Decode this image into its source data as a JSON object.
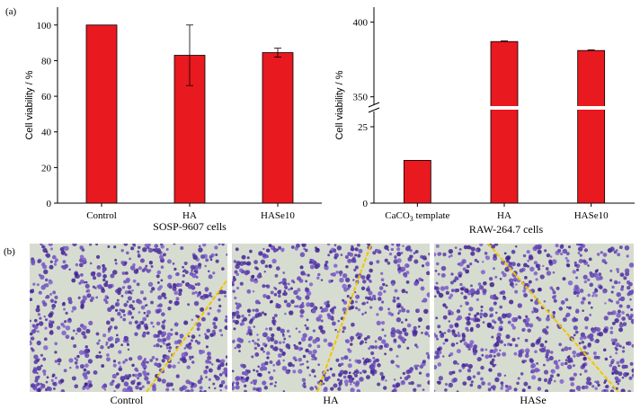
{
  "panel_labels": {
    "a": "(a)",
    "b": "(b)"
  },
  "colors": {
    "bar": "#e8191f",
    "axis": "#000000",
    "micro_bg": "#d7dcd0",
    "cell": "#5b3f9c",
    "scratch_line": "#f2c400"
  },
  "chart_data": [
    {
      "type": "bar",
      "title": "",
      "xlabel": "SOSP-9607 cells",
      "ylabel": "Cell viability / %",
      "categories": [
        "Control",
        "HA",
        "HASe10"
      ],
      "values": [
        100,
        83,
        84.5
      ],
      "errors": [
        0,
        17,
        2.5
      ],
      "ylim": [
        0,
        110
      ],
      "yticks": [
        0,
        20,
        40,
        60,
        80,
        100
      ],
      "grid": false
    },
    {
      "type": "bar",
      "title": "",
      "xlabel": "RAW-264.7 cells",
      "ylabel": "Cell viability / %",
      "categories": [
        "CaCO3 template",
        "HA",
        "HASe10"
      ],
      "category_subscripts": [
        "3",
        "",
        ""
      ],
      "category_display": [
        [
          "CaCO",
          "3",
          " template"
        ],
        [
          "HA",
          "",
          ""
        ],
        [
          "HASe10",
          "",
          ""
        ]
      ],
      "values": [
        14,
        387,
        381
      ],
      "errors": [
        0,
        0.5,
        0.5
      ],
      "axis_break": {
        "lower": [
          0,
          30
        ],
        "upper": [
          345,
          410
        ]
      },
      "yticks": [
        0,
        25,
        350,
        400
      ],
      "grid": false
    }
  ],
  "micrographs": [
    {
      "caption": "Control"
    },
    {
      "caption": "HA"
    },
    {
      "caption": "HASe"
    }
  ]
}
